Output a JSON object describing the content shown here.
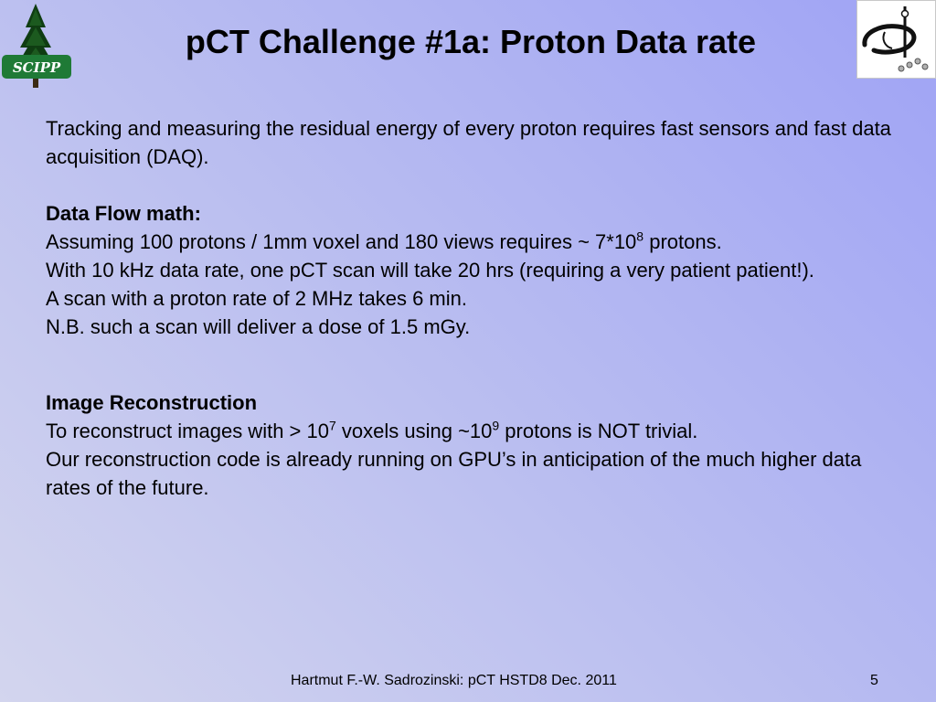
{
  "slide": {
    "title": "pCT Challenge #1a: Proton Data rate",
    "logos": {
      "left": {
        "name": "scipp-logo",
        "text": "SCIPP"
      },
      "right": {
        "name": "institute-logo"
      }
    },
    "intro": "Tracking and measuring the residual energy of every proton requires fast sensors and fast data acquisition (DAQ).",
    "data_flow": {
      "heading": "Data Flow math:",
      "line1": {
        "pre": "Assuming 100 protons / 1mm voxel and 180 views requires ~ 7*10",
        "exp": "8",
        "post": " protons."
      },
      "line2": "With 10 kHz data rate, one pCT scan will take 20 hrs  (requiring a very patient patient!).",
      "line3": "A scan with a proton rate of 2 MHz takes 6 min.",
      "line4": "N.B. such a scan will deliver a dose of 1.5 mGy."
    },
    "image_recon": {
      "heading": "Image Reconstruction",
      "line1": {
        "pre": "To reconstruct images with > 10",
        "exp1": "7",
        "mid": " voxels using ~10",
        "exp2": "9",
        "post": " protons is NOT trivial."
      },
      "line2": "Our reconstruction code is already running on GPU’s in anticipation of the much higher data rates of the future."
    },
    "footer": {
      "text": "Hartmut F.-W. Sadrozinski: pCT HSTD8 Dec. 2011",
      "page_number": "5"
    }
  }
}
